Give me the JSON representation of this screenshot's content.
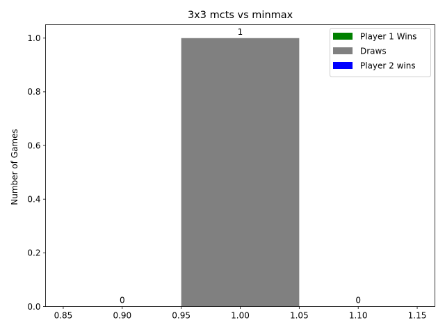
{
  "chart_data": {
    "type": "bar",
    "title": "3x3 mcts vs minmax",
    "xlabel": "",
    "ylabel": "Number of Games",
    "xlim": [
      0.835,
      1.165
    ],
    "ylim": [
      0.0,
      1.05
    ],
    "xticks": [
      0.85,
      0.9,
      0.95,
      1.0,
      1.05,
      1.1,
      1.15
    ],
    "xtick_labels": [
      "0.85",
      "0.90",
      "0.95",
      "1.00",
      "1.05",
      "1.10",
      "1.15"
    ],
    "yticks": [
      0.0,
      0.2,
      0.4,
      0.6,
      0.8,
      1.0
    ],
    "ytick_labels": [
      "0.0",
      "0.2",
      "0.4",
      "0.6",
      "0.8",
      "1.0"
    ],
    "bar_width": 0.1,
    "grid": false,
    "legend_position": "top-right",
    "series": [
      {
        "name": "Player 1 Wins",
        "color": "#008000",
        "x": 0.9,
        "value": 0,
        "label": "0"
      },
      {
        "name": "Draws",
        "color": "#808080",
        "x": 1.0,
        "value": 1,
        "label": "1"
      },
      {
        "name": "Player 2 wins",
        "color": "#0000ff",
        "x": 1.1,
        "value": 0,
        "label": "0"
      }
    ]
  }
}
